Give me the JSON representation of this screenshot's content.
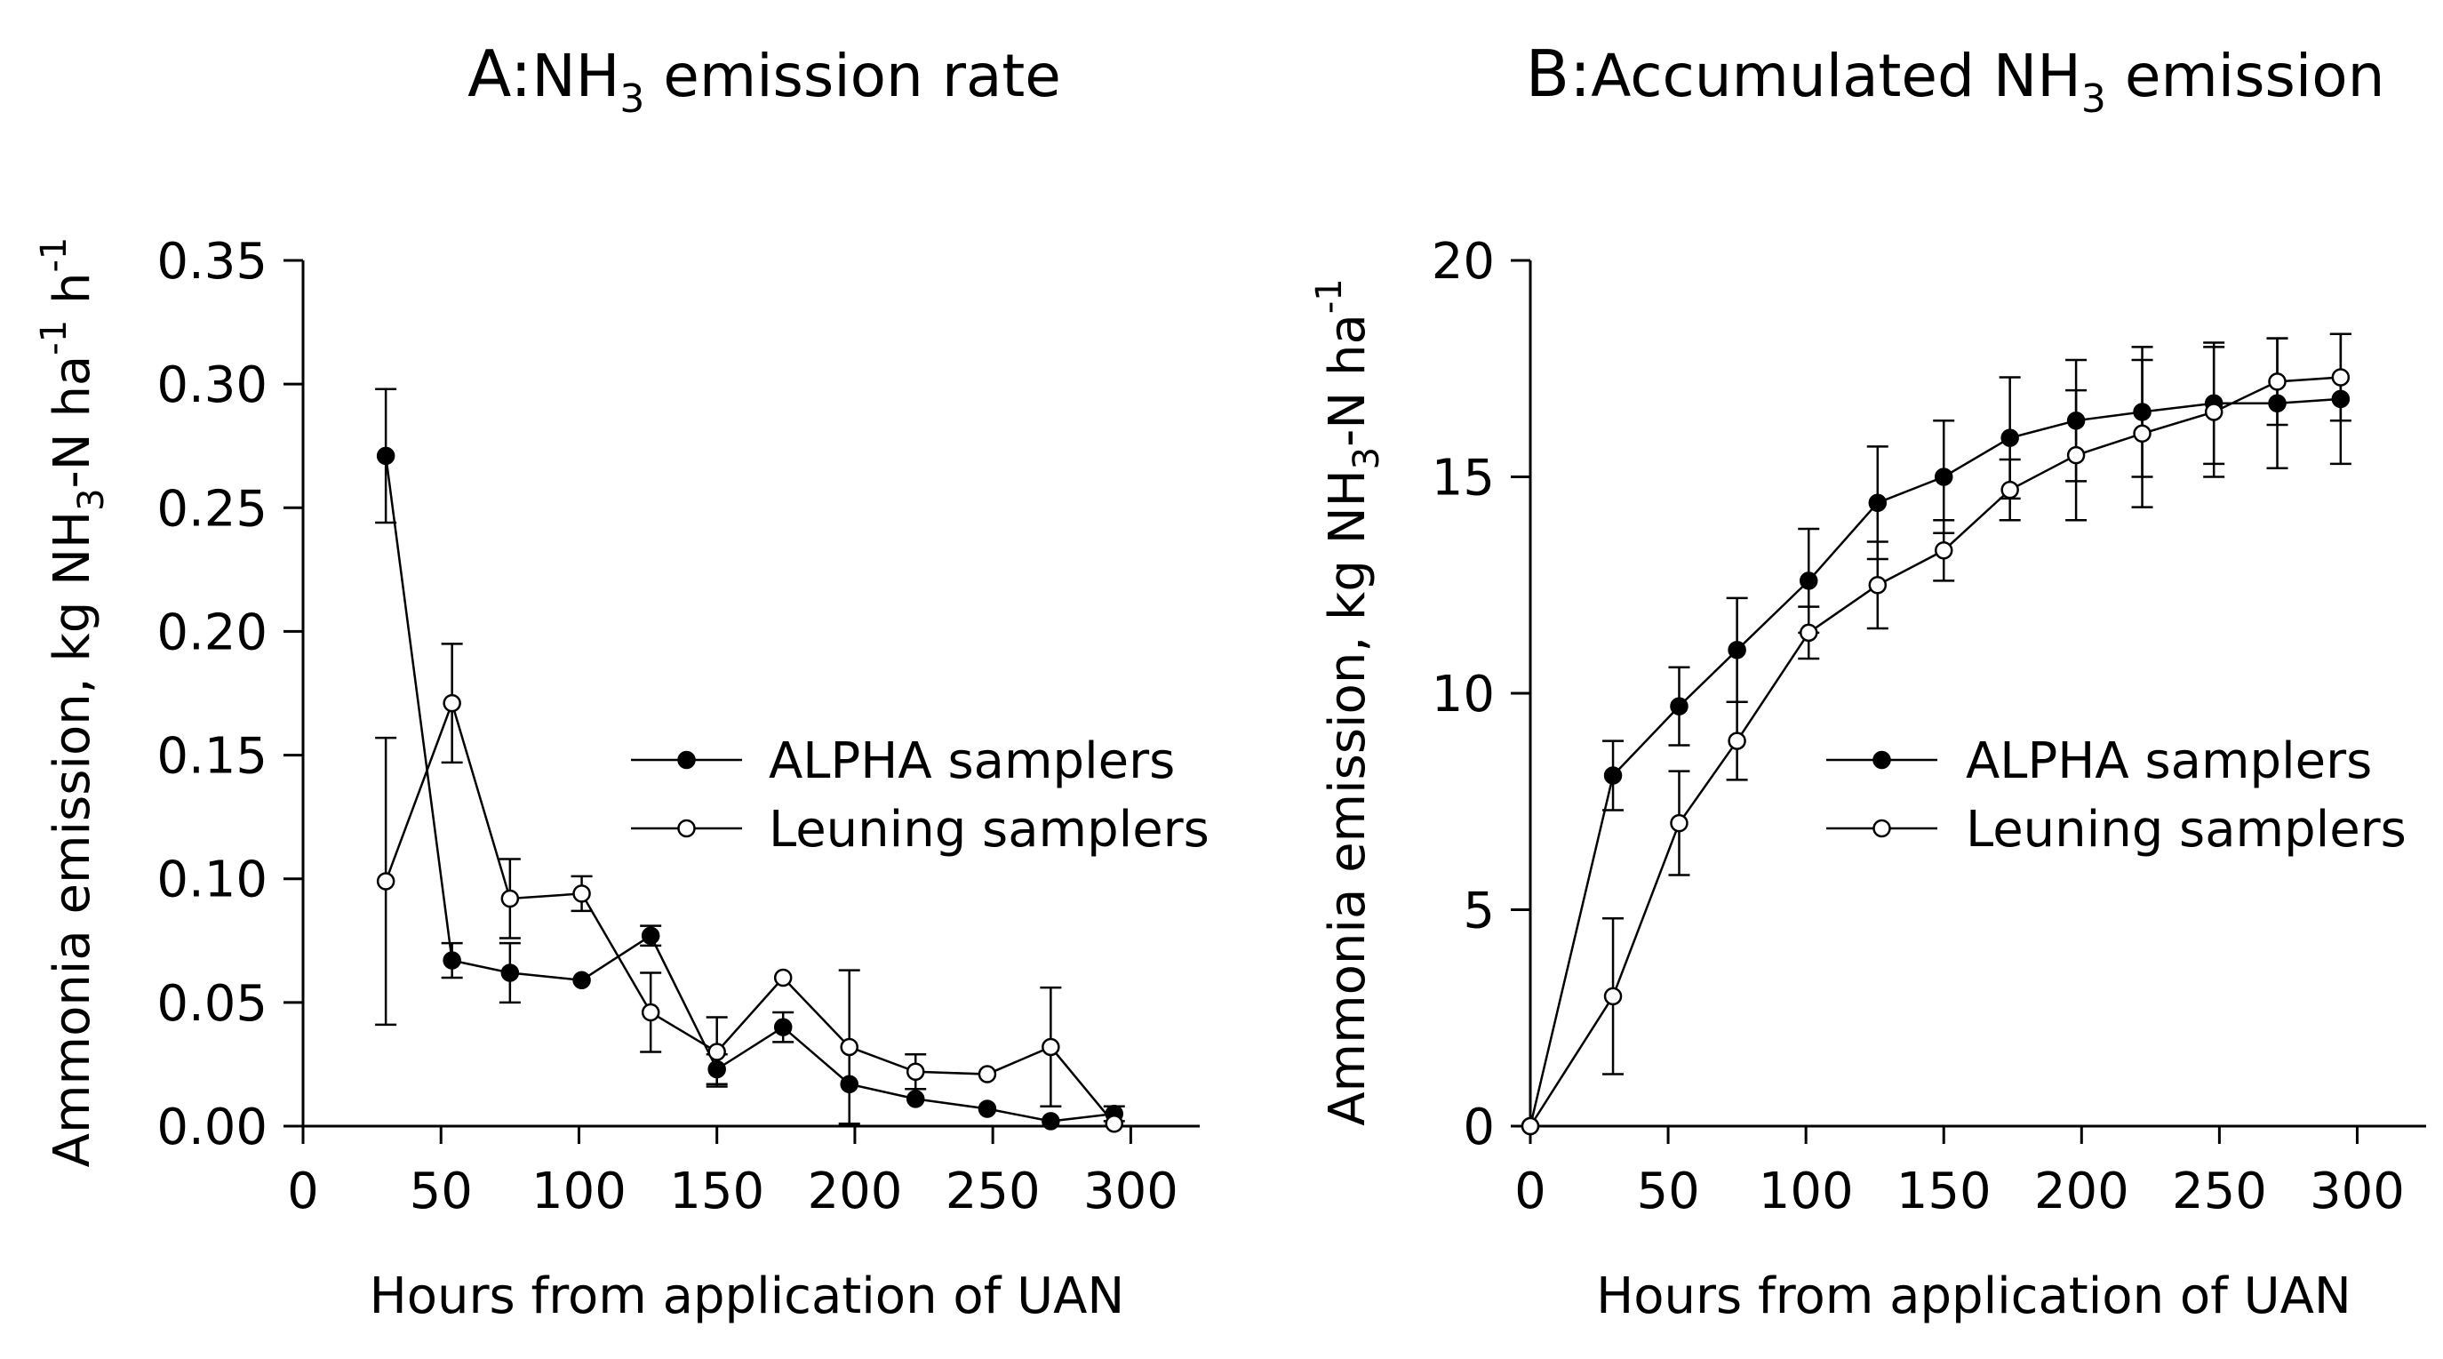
{
  "chart_data": [
    {
      "type": "line",
      "title_prefix": "A:",
      "title_main": "NH",
      "title_sub": "3",
      "title_tail": " emission rate",
      "xlabel": "Hours from application of UAN",
      "ylabel_parts": [
        "Ammonia emission, kg NH",
        "3",
        "-N ha",
        "-1",
        " h",
        "-1"
      ],
      "xlim": [
        0,
        325
      ],
      "ylim": [
        0,
        0.35
      ],
      "xticks": [
        0,
        50,
        100,
        150,
        200,
        250,
        300
      ],
      "yticks": [
        0,
        0.05,
        0.1,
        0.15,
        0.2,
        0.25,
        0.3,
        0.35
      ],
      "ytick_labels": [
        "0.00",
        "0.05",
        "0.10",
        "0.15",
        "0.20",
        "0.25",
        "0.30",
        "0.35"
      ],
      "legend_position": "center-right",
      "series": [
        {
          "name": "ALPHA samplers",
          "marker": "filled",
          "x": [
            30,
            54,
            75,
            101,
            126,
            150,
            174,
            198,
            222,
            248,
            271,
            294
          ],
          "y": [
            0.271,
            0.067,
            0.062,
            0.059,
            0.077,
            0.023,
            0.04,
            0.017,
            0.011,
            0.007,
            0.002,
            0.005
          ],
          "err": [
            0.027,
            0.007,
            0.012,
            0.0,
            0.004,
            0.006,
            0.006,
            0.0,
            0.0,
            0.0,
            0.0,
            0.003
          ]
        },
        {
          "name": "Leuning samplers",
          "marker": "open",
          "x": [
            30,
            54,
            75,
            101,
            126,
            150,
            174,
            198,
            222,
            248,
            271,
            294
          ],
          "y": [
            0.099,
            0.171,
            0.092,
            0.094,
            0.046,
            0.03,
            0.06,
            0.032,
            0.022,
            0.021,
            0.032,
            0.001
          ],
          "err": [
            0.058,
            0.024,
            0.016,
            0.007,
            0.016,
            0.014,
            0.0,
            0.031,
            0.007,
            0.0,
            0.024,
            0.0
          ]
        }
      ]
    },
    {
      "type": "line",
      "title_prefix": "B:",
      "title_main": "Accumulated NH",
      "title_sub": "3",
      "title_tail": " emission",
      "xlabel": "Hours from application of UAN",
      "ylabel_parts": [
        "Ammonia emission, kg NH",
        "3",
        "-N ha",
        "-1",
        "",
        ""
      ],
      "xlim": [
        0,
        325
      ],
      "ylim": [
        0,
        20
      ],
      "xticks": [
        0,
        50,
        100,
        150,
        200,
        250,
        300
      ],
      "yticks": [
        0,
        5,
        10,
        15,
        20
      ],
      "ytick_labels": [
        "0",
        "5",
        "10",
        "15",
        "20"
      ],
      "legend_position": "center-right",
      "series": [
        {
          "name": "ALPHA samplers",
          "marker": "filled",
          "x": [
            0,
            30,
            54,
            75,
            101,
            126,
            150,
            174,
            198,
            222,
            248,
            271,
            294
          ],
          "y": [
            0,
            8.1,
            9.7,
            11.0,
            12.6,
            14.4,
            15.0,
            15.9,
            16.3,
            16.5,
            16.7,
            16.7,
            16.8
          ],
          "err": [
            0,
            0.8,
            0.9,
            1.2,
            1.2,
            1.3,
            1.3,
            1.4,
            1.4,
            1.5,
            1.4,
            1.5,
            1.5
          ]
        },
        {
          "name": "Leuning samplers",
          "marker": "open",
          "x": [
            0,
            30,
            54,
            75,
            101,
            126,
            150,
            174,
            198,
            222,
            248,
            271,
            294
          ],
          "y": [
            0,
            3.0,
            7.0,
            8.9,
            11.4,
            12.5,
            13.3,
            14.7,
            15.5,
            16.0,
            16.5,
            17.2,
            17.3
          ],
          "err": [
            0,
            1.8,
            1.2,
            0.9,
            0.6,
            1.0,
            0.7,
            0.7,
            1.5,
            1.7,
            1.5,
            1.0,
            1.0
          ]
        }
      ]
    }
  ]
}
